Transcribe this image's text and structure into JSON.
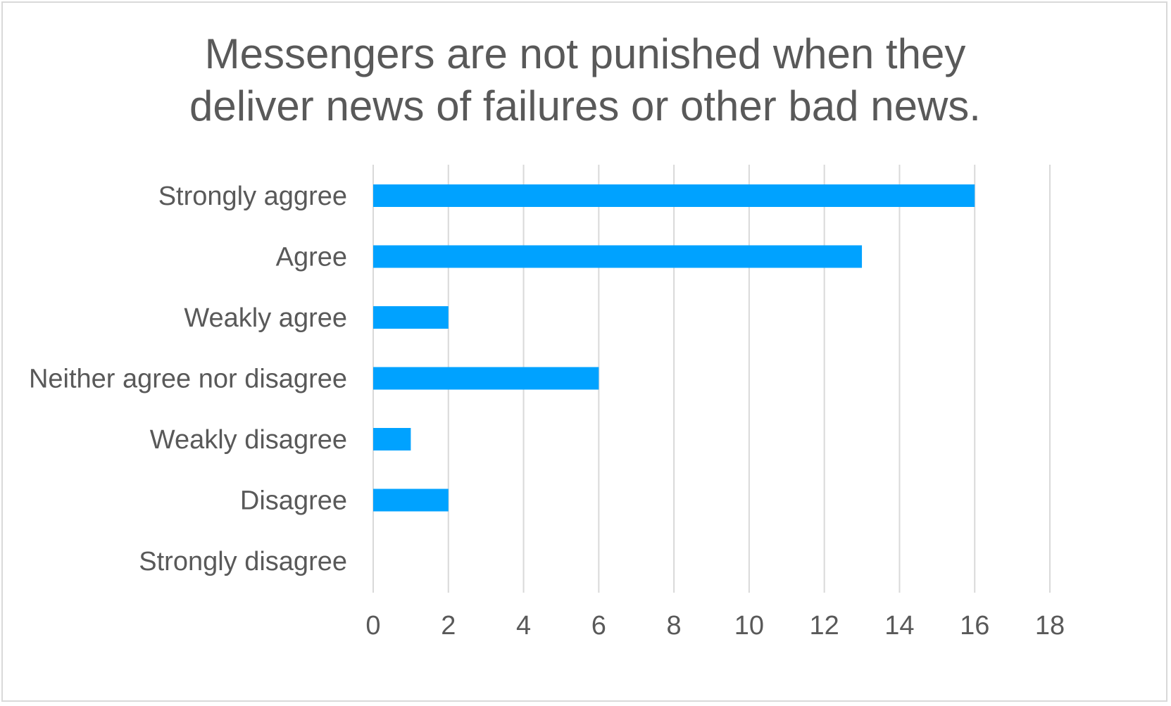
{
  "chart_data": {
    "type": "bar",
    "orientation": "horizontal",
    "title": "Messengers are not punished when they deliver news of failures or other bad news.",
    "title_lines": [
      "Messengers are not punished when they",
      "deliver news of failures or other bad news."
    ],
    "categories": [
      "Strongly aggree",
      "Agree",
      "Weakly agree",
      "Neither agree nor disagree",
      "Weakly disagree",
      "Disagree",
      "Strongly disagree"
    ],
    "values": [
      16,
      13,
      2,
      6,
      1,
      2,
      0
    ],
    "xlim": [
      0,
      18
    ],
    "xticks": [
      0,
      2,
      4,
      6,
      8,
      10,
      12,
      14,
      16,
      18
    ],
    "xlabel": "",
    "ylabel": "",
    "grid": "vertical",
    "legend": "none",
    "bar_color": "#00a2ff"
  }
}
